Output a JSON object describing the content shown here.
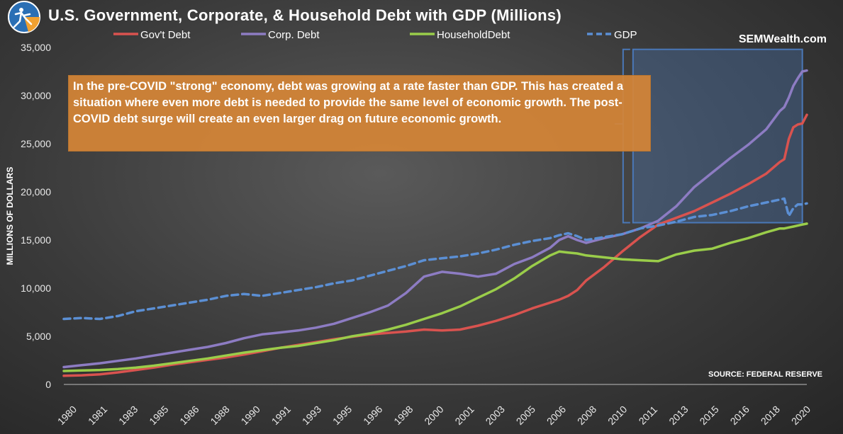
{
  "chart_data": {
    "type": "line",
    "title": "U.S. Government, Corporate, & Household Debt with GDP (Millions)",
    "ylabel": "MILLIONS OF DOLLARS",
    "xlabel": "",
    "ylim": [
      0,
      35000
    ],
    "yticks": [
      "0",
      "5,000",
      "10,000",
      "15,000",
      "20,000",
      "25,000",
      "30,000",
      "35,000"
    ],
    "xticks": [
      "1980",
      "1981",
      "1983",
      "1985",
      "1986",
      "1988",
      "1990",
      "1991",
      "1993",
      "1995",
      "1996",
      "1998",
      "2000",
      "2001",
      "2003",
      "2005",
      "2006",
      "2008",
      "2010",
      "2011",
      "2013",
      "2015",
      "2016",
      "2018",
      "2020"
    ],
    "xrange": [
      1980,
      2021.25
    ],
    "x": [
      1980,
      1981,
      1982,
      1983,
      1984,
      1985,
      1986,
      1987,
      1988,
      1989,
      1990,
      1991,
      1992,
      1993,
      1994,
      1995,
      1996,
      1997,
      1998,
      1999,
      2000,
      2001,
      2002,
      2003,
      2004,
      2005,
      2006,
      2007,
      2007.5,
      2008,
      2008.5,
      2009,
      2010,
      2011,
      2012,
      2013,
      2014,
      2015,
      2016,
      2017,
      2018,
      2019,
      2019.75,
      2020,
      2020.25,
      2020.5,
      2020.75,
      2021,
      2021.25
    ],
    "series": [
      {
        "name": "Gov't Debt",
        "color": "#d9534f",
        "dash": false,
        "values": [
          900,
          950,
          1050,
          1250,
          1500,
          1750,
          2050,
          2300,
          2550,
          2800,
          3100,
          3450,
          3800,
          4100,
          4400,
          4700,
          4950,
          5200,
          5350,
          5500,
          5700,
          5600,
          5700,
          6100,
          6600,
          7200,
          7900,
          8500,
          8800,
          9200,
          9800,
          10800,
          12200,
          13800,
          15300,
          16600,
          17300,
          18000,
          18900,
          19800,
          20800,
          21900,
          23100,
          23400,
          25500,
          26700,
          27000,
          27100,
          28000
        ]
      },
      {
        "name": "Corp. Debt",
        "color": "#8d7cc3",
        "dash": false,
        "values": [
          1800,
          2000,
          2200,
          2450,
          2700,
          3000,
          3300,
          3600,
          3900,
          4300,
          4800,
          5200,
          5400,
          5600,
          5900,
          6300,
          6900,
          7500,
          8200,
          9500,
          11200,
          11700,
          11500,
          11200,
          11500,
          12500,
          13200,
          14200,
          15000,
          15400,
          15000,
          14700,
          15200,
          15600,
          16200,
          17000,
          18500,
          20500,
          22000,
          23500,
          24900,
          26500,
          28400,
          28800,
          29800,
          31000,
          31800,
          32500,
          32600
        ]
      },
      {
        "name": "HouseholdDebt",
        "color": "#9acd4a",
        "dash": false,
        "values": [
          1400,
          1450,
          1500,
          1600,
          1750,
          1950,
          2200,
          2450,
          2700,
          3000,
          3300,
          3550,
          3800,
          4000,
          4300,
          4600,
          5000,
          5300,
          5700,
          6200,
          6800,
          7400,
          8100,
          9000,
          9900,
          11000,
          12300,
          13400,
          13800,
          13700,
          13600,
          13400,
          13200,
          13000,
          12900,
          12800,
          13500,
          13900,
          14100,
          14700,
          15200,
          15800,
          16200,
          16200,
          16300,
          16400,
          16500,
          16600,
          16700
        ]
      },
      {
        "name": "GDP",
        "color": "#5b8fd4",
        "dash": true,
        "values": [
          6800,
          6900,
          6800,
          7100,
          7600,
          7900,
          8200,
          8500,
          8800,
          9200,
          9400,
          9200,
          9500,
          9800,
          10100,
          10500,
          10800,
          11300,
          11800,
          12300,
          12900,
          13100,
          13300,
          13600,
          14000,
          14500,
          14900,
          15200,
          15500,
          15700,
          15400,
          15000,
          15300,
          15600,
          16200,
          16500,
          16900,
          17400,
          17600,
          18000,
          18500,
          18900,
          19200,
          19300,
          17500,
          18300,
          18700,
          18700,
          18800
        ]
      }
    ],
    "annotations": [
      {
        "type": "highlight-range",
        "x_range": [
          2011.6,
          2021.0
        ],
        "y_range": [
          16800,
          34800
        ]
      }
    ]
  },
  "legend": {
    "items": [
      {
        "label": "Gov't Debt",
        "color": "#d9534f",
        "dashed": false
      },
      {
        "label": "Corp. Debt",
        "color": "#8d7cc3",
        "dashed": false
      },
      {
        "label": "HouseholdDebt",
        "color": "#9acd4a",
        "dashed": false
      },
      {
        "label": "GDP",
        "color": "#5b8fd4",
        "dashed": true
      }
    ]
  },
  "brand": "SEMWealth.com",
  "source": "SOURCE:  FEDERAL RESERVE",
  "annotation_text": "In the pre-COVID \"strong\" economy, debt was growing at a rate faster than GDP. This has created a situation where even more debt is needed to provide the same level of economic growth. The post-COVID debt surge will create an even larger drag on future economic growth.",
  "colors": {
    "accent": "#d68536",
    "highlight": "#4a78b8"
  }
}
